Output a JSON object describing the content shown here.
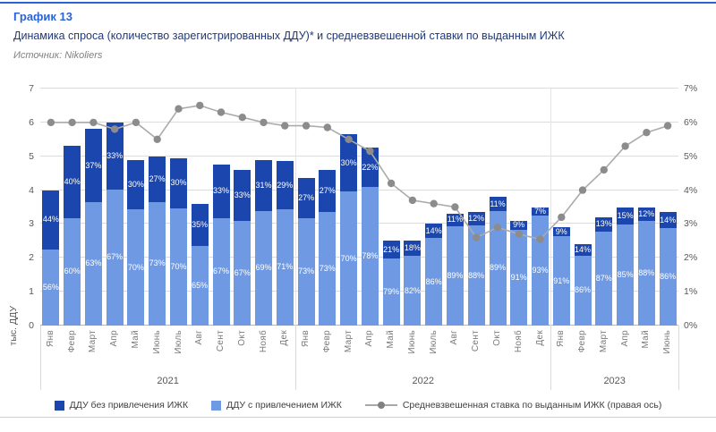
{
  "page": {
    "accent_color": "#2b63d9"
  },
  "header": {
    "chart_number": "График 13",
    "title": "Динамика спроса (количество зарегистрированных ДДУ)* и средневзвешенной ставки по выданным ИЖК",
    "source": "Источник: Nikoliers"
  },
  "legend": {
    "items": [
      {
        "label": "ДДУ без привлечения ИЖК",
        "marker": "square-dark-blue"
      },
      {
        "label": "ДДУ с привлечением ИЖК",
        "marker": "square-light-blue"
      },
      {
        "label": "Средневзвешенная ставка по выданным ИЖК (правая ось)",
        "marker": "gray-line-dot"
      }
    ]
  },
  "chart_data": {
    "type": "combo: stacked bar (thous. DDU, left axis) + line (rate %, right axis)",
    "left_axis": {
      "label": "тыс. ДДУ",
      "min": 0,
      "max": 7,
      "ticks": [
        "7",
        "6",
        "5",
        "4",
        "3",
        "2",
        "1",
        "0"
      ]
    },
    "right_axis": {
      "min": 0,
      "max": 7,
      "ticks": [
        "7%",
        "6%",
        "5%",
        "4%",
        "3%",
        "2%",
        "1%",
        "0%"
      ]
    },
    "grid": "horizontal",
    "legend_position": "bottom",
    "series_names": {
      "bar_dark": "ДДУ без привлечения ИЖК",
      "bar_light": "ДДУ с привлечением ИЖК",
      "line": "Средневзвешенная ставка по выданным ИЖК (правая ось)"
    },
    "colors": {
      "bar_dark": "#1a46ad",
      "bar_light": "#6f9ae3",
      "line": "#ababab",
      "dot": "#8c8c8c"
    },
    "groups": [
      {
        "year": "2021",
        "count": 12
      },
      {
        "year": "2022",
        "count": 12
      },
      {
        "year": "2023",
        "count": 6
      }
    ],
    "points": [
      {
        "year": "2021",
        "month": "Янв",
        "total_thousand": 4.0,
        "no_mortgage_pct": 44,
        "with_mortgage_pct": 56,
        "rate_pct": 6.0
      },
      {
        "year": "2021",
        "month": "Февр",
        "total_thousand": 5.3,
        "no_mortgage_pct": 40,
        "with_mortgage_pct": 60,
        "rate_pct": 6.0
      },
      {
        "year": "2021",
        "month": "Март",
        "total_thousand": 5.8,
        "no_mortgage_pct": 37,
        "with_mortgage_pct": 63,
        "rate_pct": 6.0
      },
      {
        "year": "2021",
        "month": "Апр",
        "total_thousand": 6.0,
        "no_mortgage_pct": 33,
        "with_mortgage_pct": 67,
        "rate_pct": 5.8
      },
      {
        "year": "2021",
        "month": "Май",
        "total_thousand": 4.9,
        "no_mortgage_pct": 30,
        "with_mortgage_pct": 70,
        "rate_pct": 6.0
      },
      {
        "year": "2021",
        "month": "Июнь",
        "total_thousand": 5.0,
        "no_mortgage_pct": 27,
        "with_mortgage_pct": 73,
        "rate_pct": 5.5
      },
      {
        "year": "2021",
        "month": "Июль",
        "total_thousand": 4.95,
        "no_mortgage_pct": 30,
        "with_mortgage_pct": 70,
        "rate_pct": 6.4
      },
      {
        "year": "2021",
        "month": "Авг",
        "total_thousand": 3.6,
        "no_mortgage_pct": 35,
        "with_mortgage_pct": 65,
        "rate_pct": 6.5
      },
      {
        "year": "2021",
        "month": "Сент",
        "total_thousand": 4.75,
        "no_mortgage_pct": 33,
        "with_mortgage_pct": 67,
        "rate_pct": 6.3
      },
      {
        "year": "2021",
        "month": "Окт",
        "total_thousand": 4.6,
        "no_mortgage_pct": 33,
        "with_mortgage_pct": 67,
        "rate_pct": 6.15
      },
      {
        "year": "2021",
        "month": "Нояб",
        "total_thousand": 4.9,
        "no_mortgage_pct": 31,
        "with_mortgage_pct": 69,
        "rate_pct": 6.0
      },
      {
        "year": "2021",
        "month": "Дек",
        "total_thousand": 4.85,
        "no_mortgage_pct": 29,
        "with_mortgage_pct": 71,
        "rate_pct": 5.9
      },
      {
        "year": "2022",
        "month": "Янв",
        "total_thousand": 4.35,
        "no_mortgage_pct": 27,
        "with_mortgage_pct": 73,
        "rate_pct": 5.9
      },
      {
        "year": "2022",
        "month": "Февр",
        "total_thousand": 4.6,
        "no_mortgage_pct": 27,
        "with_mortgage_pct": 73,
        "rate_pct": 5.85
      },
      {
        "year": "2022",
        "month": "Март",
        "total_thousand": 5.65,
        "no_mortgage_pct": 30,
        "with_mortgage_pct": 70,
        "rate_pct": 5.5
      },
      {
        "year": "2022",
        "month": "Апр",
        "total_thousand": 5.25,
        "no_mortgage_pct": 22,
        "with_mortgage_pct": 78,
        "rate_pct": 5.15
      },
      {
        "year": "2022",
        "month": "Май",
        "total_thousand": 2.5,
        "no_mortgage_pct": 21,
        "with_mortgage_pct": 79,
        "rate_pct": 4.2
      },
      {
        "year": "2022",
        "month": "Июнь",
        "total_thousand": 2.5,
        "no_mortgage_pct": 18,
        "with_mortgage_pct": 82,
        "rate_pct": 3.7
      },
      {
        "year": "2022",
        "month": "Июль",
        "total_thousand": 3.0,
        "no_mortgage_pct": 14,
        "with_mortgage_pct": 86,
        "rate_pct": 3.6
      },
      {
        "year": "2022",
        "month": "Авг",
        "total_thousand": 3.3,
        "no_mortgage_pct": 11,
        "with_mortgage_pct": 89,
        "rate_pct": 3.5
      },
      {
        "year": "2022",
        "month": "Сент",
        "total_thousand": 3.35,
        "no_mortgage_pct": 12,
        "with_mortgage_pct": 88,
        "rate_pct": 2.6
      },
      {
        "year": "2022",
        "month": "Окт",
        "total_thousand": 3.8,
        "no_mortgage_pct": 11,
        "with_mortgage_pct": 89,
        "rate_pct": 2.9
      },
      {
        "year": "2022",
        "month": "Нояб",
        "total_thousand": 3.1,
        "no_mortgage_pct": 9,
        "with_mortgage_pct": 91,
        "rate_pct": 2.7
      },
      {
        "year": "2022",
        "month": "Дек",
        "total_thousand": 3.5,
        "no_mortgage_pct": 7,
        "with_mortgage_pct": 93,
        "rate_pct": 2.55
      },
      {
        "year": "2023",
        "month": "Янв",
        "total_thousand": 2.9,
        "no_mortgage_pct": 9,
        "with_mortgage_pct": 91,
        "rate_pct": 3.2
      },
      {
        "year": "2023",
        "month": "Февр",
        "total_thousand": 2.4,
        "no_mortgage_pct": 14,
        "with_mortgage_pct": 86,
        "rate_pct": 4.0
      },
      {
        "year": "2023",
        "month": "Март",
        "total_thousand": 3.2,
        "no_mortgage_pct": 13,
        "with_mortgage_pct": 87,
        "rate_pct": 4.6
      },
      {
        "year": "2023",
        "month": "Апр",
        "total_thousand": 3.5,
        "no_mortgage_pct": 15,
        "with_mortgage_pct": 85,
        "rate_pct": 5.3
      },
      {
        "year": "2023",
        "month": "Май",
        "total_thousand": 3.5,
        "no_mortgage_pct": 12,
        "with_mortgage_pct": 88,
        "rate_pct": 5.7
      },
      {
        "year": "2023",
        "month": "Июнь",
        "total_thousand": 3.35,
        "no_mortgage_pct": 14,
        "with_mortgage_pct": 86,
        "rate_pct": 5.9
      }
    ]
  }
}
